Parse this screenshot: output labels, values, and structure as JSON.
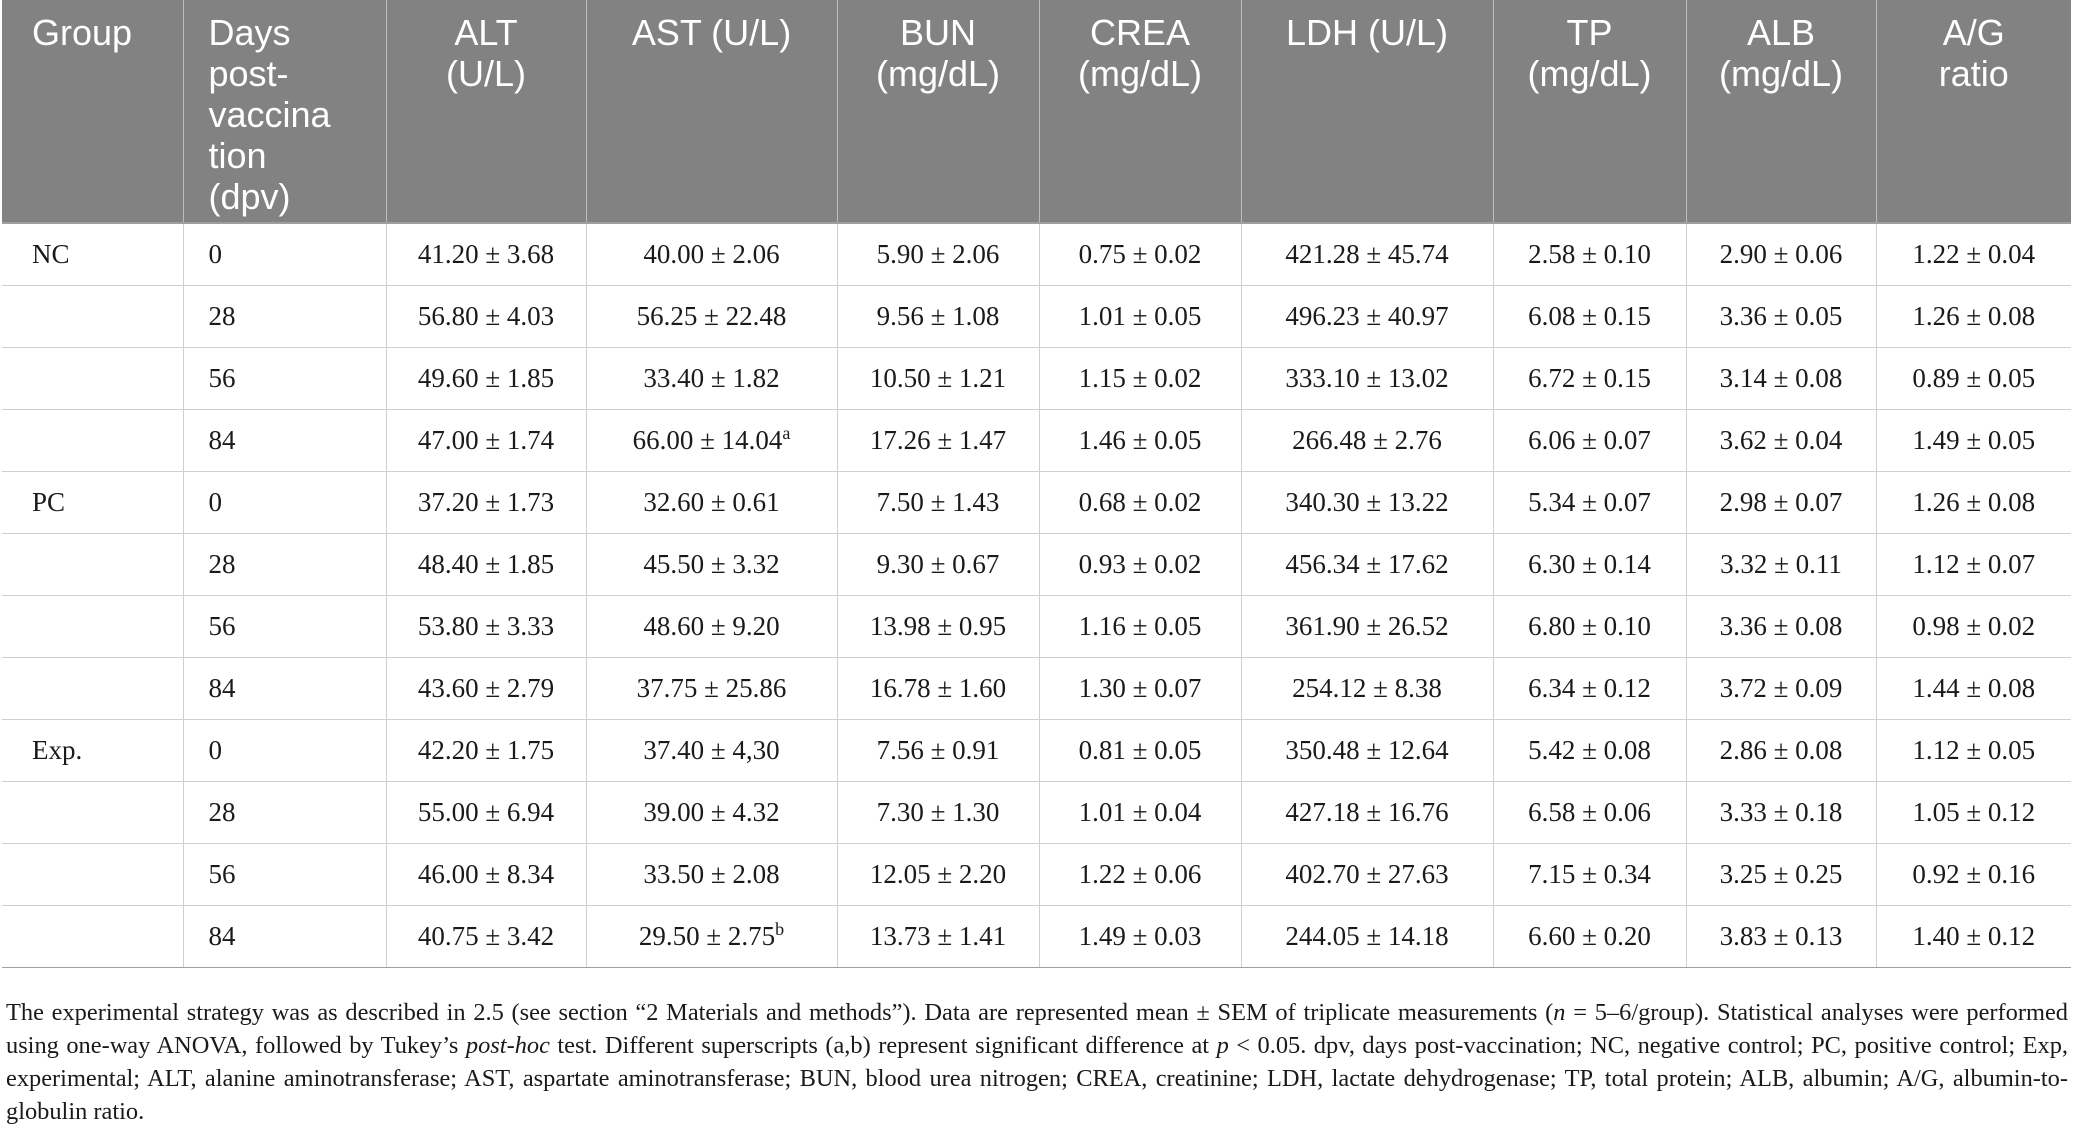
{
  "table": {
    "headers": [
      "Group",
      "Days\npost-\nvaccina\ntion\n(dpv)",
      "ALT\n(U/L)",
      "AST (U/L)",
      "BUN\n(mg/dL)",
      "CREA\n(mg/dL)",
      "LDH (U/L)",
      "TP\n(mg/dL)",
      "ALB\n(mg/dL)",
      "A/G\nratio"
    ],
    "rows": [
      {
        "group": "NC",
        "days": "0",
        "alt": "41.20 ± 3.68",
        "ast": "40.00 ± 2.06",
        "ast_sup": "",
        "bun": "5.90 ± 2.06",
        "crea": "0.75 ± 0.02",
        "ldh": "421.28 ± 45.74",
        "tp": "2.58 ± 0.10",
        "alb": "2.90 ± 0.06",
        "ag": "1.22 ± 0.04"
      },
      {
        "group": "",
        "days": "28",
        "alt": "56.80 ± 4.03",
        "ast": "56.25 ± 22.48",
        "ast_sup": "",
        "bun": "9.56 ± 1.08",
        "crea": "1.01 ± 0.05",
        "ldh": "496.23 ± 40.97",
        "tp": "6.08 ± 0.15",
        "alb": "3.36 ± 0.05",
        "ag": "1.26 ± 0.08"
      },
      {
        "group": "",
        "days": "56",
        "alt": "49.60 ± 1.85",
        "ast": "33.40 ± 1.82",
        "ast_sup": "",
        "bun": "10.50 ± 1.21",
        "crea": "1.15 ± 0.02",
        "ldh": "333.10 ± 13.02",
        "tp": "6.72 ± 0.15",
        "alb": "3.14 ± 0.08",
        "ag": "0.89 ± 0.05"
      },
      {
        "group": "",
        "days": "84",
        "alt": "47.00 ± 1.74",
        "ast": "66.00 ± 14.04",
        "ast_sup": "a",
        "bun": "17.26 ± 1.47",
        "crea": "1.46 ± 0.05",
        "ldh": "266.48 ± 2.76",
        "tp": "6.06 ± 0.07",
        "alb": "3.62 ± 0.04",
        "ag": "1.49 ± 0.05"
      },
      {
        "group": "PC",
        "days": "0",
        "alt": "37.20 ± 1.73",
        "ast": "32.60 ± 0.61",
        "ast_sup": "",
        "bun": "7.50 ± 1.43",
        "crea": "0.68 ± 0.02",
        "ldh": "340.30 ± 13.22",
        "tp": "5.34 ± 0.07",
        "alb": "2.98 ± 0.07",
        "ag": "1.26 ± 0.08"
      },
      {
        "group": "",
        "days": "28",
        "alt": "48.40 ± 1.85",
        "ast": "45.50 ± 3.32",
        "ast_sup": "",
        "bun": "9.30 ± 0.67",
        "crea": "0.93 ± 0.02",
        "ldh": "456.34 ± 17.62",
        "tp": "6.30 ± 0.14",
        "alb": "3.32 ± 0.11",
        "ag": "1.12 ± 0.07"
      },
      {
        "group": "",
        "days": "56",
        "alt": "53.80 ± 3.33",
        "ast": "48.60 ± 9.20",
        "ast_sup": "",
        "bun": "13.98 ± 0.95",
        "crea": "1.16 ± 0.05",
        "ldh": "361.90 ± 26.52",
        "tp": "6.80 ± 0.10",
        "alb": "3.36 ± 0.08",
        "ag": "0.98 ± 0.02"
      },
      {
        "group": "",
        "days": "84",
        "alt": "43.60 ± 2.79",
        "ast": "37.75 ± 25.86",
        "ast_sup": "",
        "bun": "16.78 ± 1.60",
        "crea": "1.30 ± 0.07",
        "ldh": "254.12 ± 8.38",
        "tp": "6.34 ± 0.12",
        "alb": "3.72 ± 0.09",
        "ag": "1.44 ± 0.08"
      },
      {
        "group": "Exp.",
        "days": "0",
        "alt": "42.20 ± 1.75",
        "ast": "37.40 ± 4,30",
        "ast_sup": "",
        "bun": "7.56 ± 0.91",
        "crea": "0.81 ± 0.05",
        "ldh": "350.48 ± 12.64",
        "tp": "5.42 ± 0.08",
        "alb": "2.86 ± 0.08",
        "ag": "1.12 ± 0.05"
      },
      {
        "group": "",
        "days": "28",
        "alt": "55.00 ± 6.94",
        "ast": "39.00 ± 4.32",
        "ast_sup": "",
        "bun": "7.30 ± 1.30",
        "crea": "1.01 ± 0.04",
        "ldh": "427.18 ± 16.76",
        "tp": "6.58 ± 0.06",
        "alb": "3.33 ± 0.18",
        "ag": "1.05 ± 0.12"
      },
      {
        "group": "",
        "days": "56",
        "alt": "46.00 ± 8.34",
        "ast": "33.50 ± 2.08",
        "ast_sup": "",
        "bun": "12.05 ± 2.20",
        "crea": "1.22 ± 0.06",
        "ldh": "402.70 ± 27.63",
        "tp": "7.15 ± 0.34",
        "alb": "3.25 ± 0.25",
        "ag": "0.92 ± 0.16"
      },
      {
        "group": "",
        "days": "84",
        "alt": "40.75 ± 3.42",
        "ast": "29.50 ± 2.75",
        "ast_sup": "b",
        "bun": "13.73 ± 1.41",
        "crea": "1.49 ± 0.03",
        "ldh": "244.05 ± 14.18",
        "tp": "6.60 ± 0.20",
        "alb": "3.83 ± 0.13",
        "ag": "1.40 ± 0.12"
      }
    ]
  },
  "footnote": {
    "s1": "The experimental strategy was as described in 2.5 (see section “2 Materials and methods”). Data are represented mean ± SEM of triplicate measurements (",
    "s1_italic": "n",
    "s2": " = 5–6/group). Statistical analyses were performed using one-way ANOVA, followed by Tukey’s ",
    "s2_italic": "post-hoc",
    "s3": " test. Different superscripts (a,b) represent significant difference at ",
    "s3_italic": "p",
    "s4": " < 0.05. dpv, days post-vaccination; NC, negative control; PC, positive control; Exp, experimental; ALT, alanine aminotransferase; AST, aspartate aminotransferase; BUN, blood urea nitrogen; CREA, creatinine; LDH, lactate dehydrogenase; TP, total protein; ALB, albumin; A/G, albumin-to-globulin ratio."
  }
}
